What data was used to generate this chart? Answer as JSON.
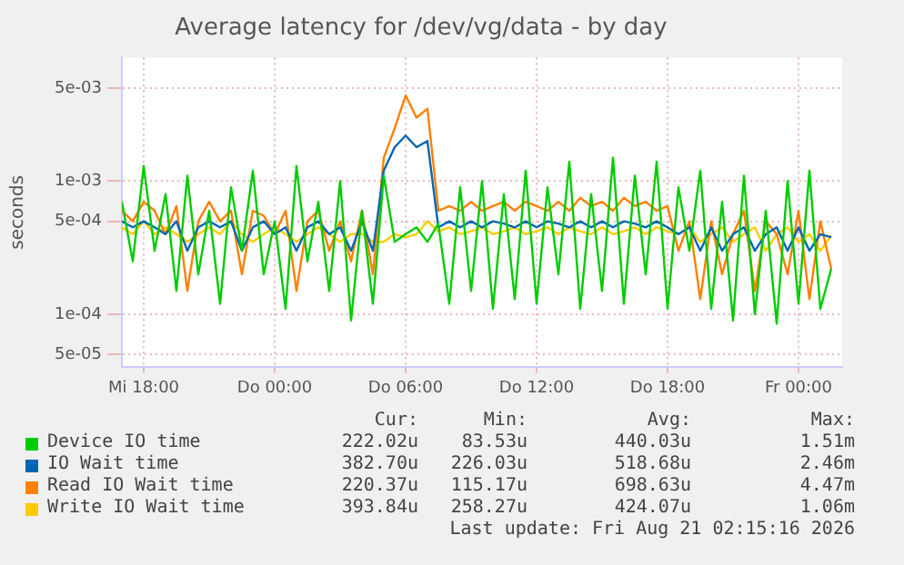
{
  "chart_data": {
    "type": "line",
    "title": "Average latency for /dev/vg/data - by day",
    "ylabel": "seconds",
    "log": "y",
    "grid": true,
    "legend": "bottom",
    "marker": "none",
    "line_style": "solid",
    "xlim": [
      "2026-08-19T17:00",
      "2026-08-21T02:00"
    ],
    "xticks": [
      {
        "value": "2026-08-19T18:00",
        "label": "Mi 18:00"
      },
      {
        "value": "2026-08-20T00:00",
        "label": "Do 00:00"
      },
      {
        "value": "2026-08-20T06:00",
        "label": "Do 06:00"
      },
      {
        "value": "2026-08-20T12:00",
        "label": "Do 12:00"
      },
      {
        "value": "2026-08-20T18:00",
        "label": "Do 18:00"
      },
      {
        "value": "2026-08-21T00:00",
        "label": "Fr 00:00"
      }
    ],
    "ylim": [
      4e-05,
      0.0085
    ],
    "yticks": [
      {
        "value": 5e-05,
        "label": "5e-05"
      },
      {
        "value": 0.0001,
        "label": "1e-04"
      },
      {
        "value": 0.0005,
        "label": "5e-04"
      },
      {
        "value": 0.001,
        "label": "1e-03"
      },
      {
        "value": 0.005,
        "label": "5e-03"
      }
    ],
    "x": [
      "2026-08-19T17:00",
      "2026-08-19T17:30",
      "2026-08-19T18:00",
      "2026-08-19T18:30",
      "2026-08-19T19:00",
      "2026-08-19T19:30",
      "2026-08-19T20:00",
      "2026-08-19T20:30",
      "2026-08-19T21:00",
      "2026-08-19T21:30",
      "2026-08-19T22:00",
      "2026-08-19T22:30",
      "2026-08-19T23:00",
      "2026-08-19T23:30",
      "2026-08-20T00:00",
      "2026-08-20T00:30",
      "2026-08-20T01:00",
      "2026-08-20T01:30",
      "2026-08-20T02:00",
      "2026-08-20T02:30",
      "2026-08-20T03:00",
      "2026-08-20T03:30",
      "2026-08-20T04:00",
      "2026-08-20T04:30",
      "2026-08-20T05:00",
      "2026-08-20T05:30",
      "2026-08-20T06:00",
      "2026-08-20T06:30",
      "2026-08-20T07:00",
      "2026-08-20T07:30",
      "2026-08-20T08:00",
      "2026-08-20T08:30",
      "2026-08-20T09:00",
      "2026-08-20T09:30",
      "2026-08-20T10:00",
      "2026-08-20T10:30",
      "2026-08-20T11:00",
      "2026-08-20T11:30",
      "2026-08-20T12:00",
      "2026-08-20T12:30",
      "2026-08-20T13:00",
      "2026-08-20T13:30",
      "2026-08-20T14:00",
      "2026-08-20T14:30",
      "2026-08-20T15:00",
      "2026-08-20T15:30",
      "2026-08-20T16:00",
      "2026-08-20T16:30",
      "2026-08-20T17:00",
      "2026-08-20T17:30",
      "2026-08-20T18:00",
      "2026-08-20T18:30",
      "2026-08-20T19:00",
      "2026-08-20T19:30",
      "2026-08-20T20:00",
      "2026-08-20T20:30",
      "2026-08-20T21:00",
      "2026-08-20T21:30",
      "2026-08-20T22:00",
      "2026-08-20T22:30",
      "2026-08-20T23:00",
      "2026-08-20T23:30",
      "2026-08-21T00:00",
      "2026-08-21T00:30",
      "2026-08-21T01:00",
      "2026-08-21T01:30"
    ],
    "series": [
      {
        "name": "Device IO time",
        "color": "#00cc00",
        "values": [
          0.0007,
          0.00025,
          0.0013,
          0.0003,
          0.0008,
          0.00015,
          0.0011,
          0.0002,
          0.0006,
          0.00012,
          0.0009,
          0.0003,
          0.0012,
          0.0002,
          0.0005,
          0.00011,
          0.0013,
          0.00025,
          0.0007,
          0.00015,
          0.001,
          9e-05,
          0.0006,
          0.00012,
          0.0011,
          0.00035,
          0.0004,
          0.00045,
          0.00035,
          0.00048,
          0.00012,
          0.0009,
          0.00015,
          0.001,
          0.00011,
          0.0008,
          0.00013,
          0.0012,
          0.00012,
          0.0009,
          0.0002,
          0.0014,
          0.00011,
          0.0008,
          0.00015,
          0.0015,
          0.00012,
          0.0011,
          0.0002,
          0.0014,
          0.00011,
          0.0009,
          0.0003,
          0.0012,
          0.00011,
          0.0007,
          9e-05,
          0.0011,
          0.0001,
          0.0006,
          8.5e-05,
          0.001,
          0.00012,
          0.0012,
          0.00011,
          0.00022
        ]
      },
      {
        "name": "IO Wait time",
        "color": "#0066b3",
        "values": [
          0.0005,
          0.00045,
          0.0005,
          0.00045,
          0.0004,
          0.0005,
          0.0003,
          0.00045,
          0.0005,
          0.00045,
          0.0005,
          0.0003,
          0.00045,
          0.0005,
          0.0004,
          0.00045,
          0.0003,
          0.00045,
          0.0005,
          0.0004,
          0.00045,
          0.0003,
          0.0005,
          0.0003,
          0.0012,
          0.0018,
          0.0022,
          0.0018,
          0.002,
          0.00045,
          0.0005,
          0.00045,
          0.0005,
          0.00045,
          0.0005,
          0.00048,
          0.00045,
          0.0005,
          0.00045,
          0.0005,
          0.00048,
          0.00045,
          0.0005,
          0.00045,
          0.0005,
          0.00045,
          0.0005,
          0.00048,
          0.00045,
          0.0005,
          0.00045,
          0.0004,
          0.00045,
          0.0003,
          0.00045,
          0.0003,
          0.0004,
          0.00045,
          0.0003,
          0.0004,
          0.00045,
          0.0003,
          0.00045,
          0.0003,
          0.0004,
          0.00038
        ]
      },
      {
        "name": "Read IO Wait time",
        "color": "#ff8000",
        "values": [
          0.0006,
          0.0005,
          0.0007,
          0.0006,
          0.0004,
          0.00065,
          0.00015,
          0.0005,
          0.0007,
          0.0005,
          0.0006,
          0.0002,
          0.0006,
          0.00055,
          0.0004,
          0.0006,
          0.00015,
          0.0005,
          0.0006,
          0.0003,
          0.0005,
          0.00025,
          0.0006,
          0.0002,
          0.0015,
          0.0025,
          0.0044,
          0.003,
          0.0035,
          0.0006,
          0.00065,
          0.0006,
          0.0007,
          0.0006,
          0.00065,
          0.0007,
          0.0006,
          0.0007,
          0.00065,
          0.0006,
          0.0007,
          0.0006,
          0.00075,
          0.00065,
          0.0007,
          0.0006,
          0.00075,
          0.00065,
          0.0007,
          0.0006,
          0.00065,
          0.0003,
          0.0005,
          0.00013,
          0.0005,
          0.0002,
          0.0004,
          0.0006,
          0.00015,
          0.0005,
          0.0004,
          0.0002,
          0.0006,
          0.00013,
          0.0005,
          0.00022
        ]
      },
      {
        "name": "Write IO Wait time",
        "color": "#ffcc00",
        "values": [
          0.00045,
          0.0004,
          0.0005,
          0.0004,
          0.00045,
          0.0004,
          0.00035,
          0.0004,
          0.00045,
          0.0004,
          0.0005,
          0.0004,
          0.00035,
          0.0004,
          0.00045,
          0.0004,
          0.00035,
          0.0004,
          0.00045,
          0.0004,
          0.00035,
          0.0004,
          0.0004,
          0.00035,
          0.00035,
          0.0004,
          0.00038,
          0.0004,
          0.0005,
          0.00042,
          0.00045,
          0.0004,
          0.00042,
          0.00045,
          0.0004,
          0.00042,
          0.00045,
          0.0004,
          0.00042,
          0.00045,
          0.0004,
          0.00045,
          0.00042,
          0.0004,
          0.00045,
          0.0004,
          0.00042,
          0.00045,
          0.0004,
          0.00045,
          0.00042,
          0.0004,
          0.00045,
          0.00035,
          0.0004,
          0.00045,
          0.00035,
          0.0004,
          0.00045,
          0.0003,
          0.0004,
          0.00045,
          0.00035,
          0.0004,
          0.0003,
          0.00039
        ]
      }
    ],
    "annotations": [
      "Cur:",
      "Min:",
      "Avg:",
      "Max:",
      "222.02u",
      "83.53u",
      "440.03u",
      "1.51m",
      "382.70u",
      "226.03u",
      "518.68u",
      "2.46m",
      "220.37u",
      "115.17u",
      "698.63u",
      "4.47m",
      "393.84u",
      "258.27u",
      "424.07u",
      "1.06m",
      "Last update: Fri Aug 21 02:15:16 2026"
    ]
  }
}
